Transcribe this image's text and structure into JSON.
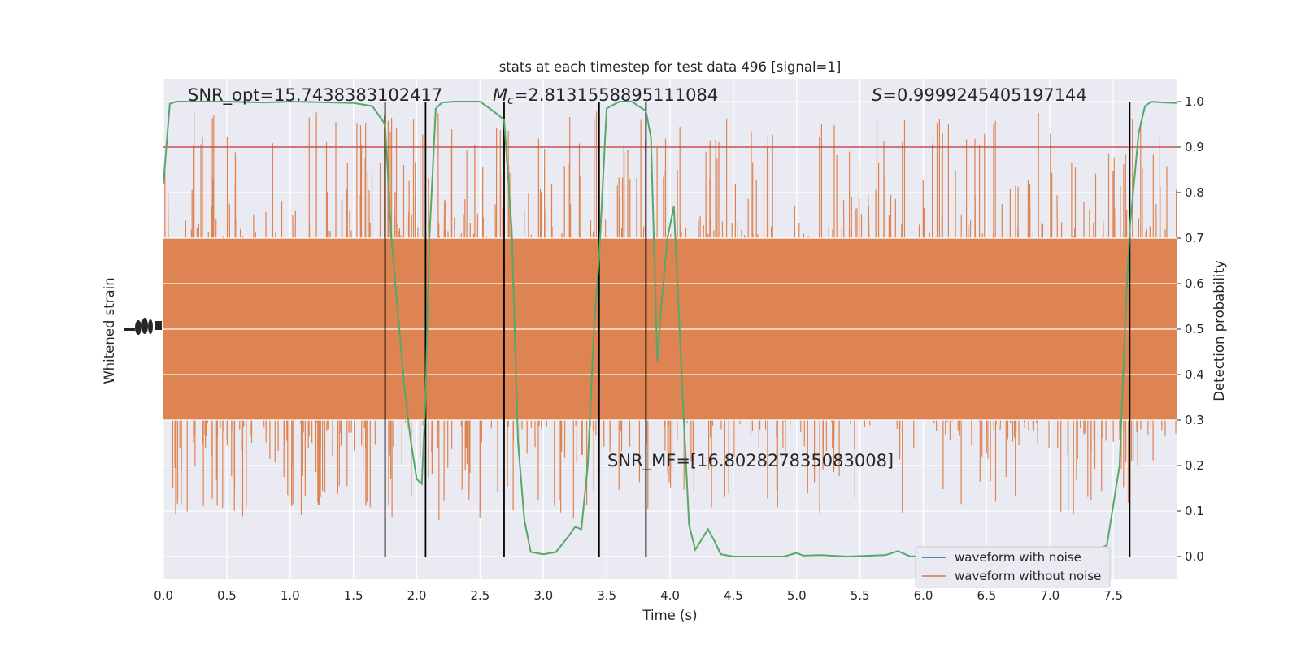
{
  "chart_data": {
    "type": "line",
    "title": "stats at each timestep for test data 496 [signal=1]",
    "xlabel": "Time (s)",
    "ylabel_left": "Whitened strain",
    "ylabel_right": "Detection probability",
    "xlim": [
      0.0,
      8.0
    ],
    "ylim_right": [
      -0.05,
      1.05
    ],
    "xticks": [
      "0.0",
      "0.5",
      "1.0",
      "1.5",
      "2.0",
      "2.5",
      "3.0",
      "3.5",
      "4.0",
      "4.5",
      "5.0",
      "5.5",
      "6.0",
      "6.5",
      "7.0",
      "7.5"
    ],
    "yticks_right": [
      "0.0",
      "0.1",
      "0.2",
      "0.3",
      "0.4",
      "0.5",
      "0.6",
      "0.7",
      "0.8",
      "0.9",
      "1.0"
    ],
    "grid": true,
    "background": "#eaeaf2",
    "threshold": {
      "value": 0.9,
      "color": "#c44e52"
    },
    "event_lines_x": [
      1.75,
      2.07,
      2.69,
      3.44,
      3.81,
      7.63
    ],
    "annotations": {
      "snr_opt": "SNR_opt=15.7438383102417",
      "mc_symbol": "M",
      "mc_sub": "c",
      "mc_value": "=2.8131558895111084",
      "s_symbol": "S",
      "s_value": "=0.9999245405197144",
      "snr_mf": "SNR_MF=[16.802827835083008]"
    },
    "series": [
      {
        "name": "waveform with noise",
        "color": "#4c72b0",
        "values": []
      },
      {
        "name": "waveform without noise",
        "color": "#dd8452",
        "values": []
      },
      {
        "color": "#55a868",
        "x": [
          0.0,
          0.05,
          0.1,
          0.2,
          0.3,
          0.5,
          0.8,
          1.0,
          1.2,
          1.5,
          1.65,
          1.75,
          1.8,
          1.9,
          1.95,
          2.0,
          2.04,
          2.07,
          2.1,
          2.15,
          2.2,
          2.3,
          2.5,
          2.6,
          2.69,
          2.75,
          2.8,
          2.85,
          2.9,
          3.0,
          3.1,
          3.2,
          3.25,
          3.3,
          3.35,
          3.4,
          3.44,
          3.5,
          3.6,
          3.7,
          3.75,
          3.81,
          3.85,
          3.9,
          3.93,
          3.98,
          4.03,
          4.1,
          4.15,
          4.2,
          4.3,
          4.35,
          4.4,
          4.5,
          4.7,
          4.9,
          5.0,
          5.05,
          5.2,
          5.4,
          5.7,
          5.8,
          5.9,
          6.2,
          6.5,
          6.8,
          7.0,
          7.2,
          7.25,
          7.35,
          7.45,
          7.55,
          7.6,
          7.63,
          7.7,
          7.75,
          7.8,
          7.9,
          8.0
        ],
        "values": [
          0.82,
          0.995,
          1.0,
          1.0,
          1.0,
          1.0,
          0.998,
          1.0,
          0.999,
          0.997,
          0.99,
          0.95,
          0.7,
          0.38,
          0.26,
          0.17,
          0.16,
          0.35,
          0.7,
          0.985,
          0.998,
          1.0,
          1.0,
          0.98,
          0.96,
          0.72,
          0.25,
          0.08,
          0.01,
          0.005,
          0.01,
          0.045,
          0.065,
          0.06,
          0.2,
          0.5,
          0.66,
          0.985,
          1.0,
          1.0,
          0.99,
          0.98,
          0.92,
          0.43,
          0.55,
          0.7,
          0.77,
          0.35,
          0.07,
          0.015,
          0.06,
          0.035,
          0.005,
          0.0,
          0.0,
          0.0,
          0.008,
          0.002,
          0.003,
          0.0,
          0.003,
          0.012,
          0.0,
          0.005,
          0.002,
          0.004,
          0.007,
          0.01,
          0.02,
          0.012,
          0.025,
          0.2,
          0.55,
          0.72,
          0.93,
          0.99,
          1.0,
          0.998,
          0.997
        ]
      }
    ]
  }
}
